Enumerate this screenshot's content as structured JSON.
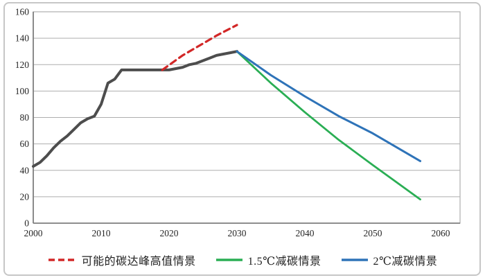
{
  "frame": {
    "border_color": "#c6c6c6",
    "background": "#ffffff"
  },
  "chart_data": {
    "type": "line",
    "title": "",
    "xlabel": "",
    "ylabel": "",
    "xlim": [
      2000,
      2062.9
    ],
    "ylim": [
      0,
      160
    ],
    "x_ticks": [
      "2000",
      "2010",
      "2020",
      "2030",
      "2040",
      "2050",
      "2060"
    ],
    "x_tick_years": [
      2000,
      2010,
      2020,
      2030,
      2040,
      2050,
      2060
    ],
    "y_ticks": [
      "0",
      "20",
      "40",
      "60",
      "80",
      "100",
      "120",
      "140",
      "160"
    ],
    "y_tick_values": [
      0,
      20,
      40,
      60,
      80,
      100,
      120,
      140,
      160
    ],
    "grid": "horizontal gridlines only, light gray",
    "legend_position": "bottom-center",
    "axis_color": "#7f7f7f",
    "grid_color": "#aeaeae",
    "tick_label_color": "#262626",
    "series": [
      {
        "name": "",
        "id": "historical-emissions",
        "color": "#4d4d4d",
        "style": "solid",
        "width": 4,
        "in_legend": false,
        "points": [
          [
            2000,
            43
          ],
          [
            2001,
            46
          ],
          [
            2002,
            51
          ],
          [
            2003,
            57
          ],
          [
            2004,
            62
          ],
          [
            2005,
            66
          ],
          [
            2006,
            71
          ],
          [
            2007,
            76
          ],
          [
            2008,
            79
          ],
          [
            2009,
            81
          ],
          [
            2010,
            90
          ],
          [
            2011,
            106
          ],
          [
            2012,
            109
          ],
          [
            2013,
            116
          ],
          [
            2014,
            116
          ],
          [
            2015,
            116
          ],
          [
            2016,
            116
          ],
          [
            2017,
            116
          ],
          [
            2018,
            116
          ],
          [
            2019,
            116
          ],
          [
            2020,
            116
          ],
          [
            2021,
            117
          ],
          [
            2022,
            118
          ],
          [
            2023,
            120
          ],
          [
            2024,
            121
          ],
          [
            2025,
            123
          ],
          [
            2026,
            125
          ],
          [
            2027,
            127
          ],
          [
            2028,
            128
          ],
          [
            2029,
            129
          ],
          [
            2030,
            130
          ]
        ]
      },
      {
        "name": "可能的碳达峰高值情景",
        "id": "peak-high-scenario",
        "color": "#d22727",
        "style": "dashed",
        "width": 3.2,
        "in_legend": true,
        "points": [
          [
            2019,
            116
          ],
          [
            2022,
            127
          ],
          [
            2025,
            136
          ],
          [
            2027,
            142
          ],
          [
            2030,
            150
          ]
        ]
      },
      {
        "name": "1.5℃减碳情景",
        "id": "scenario-1-5c",
        "color": "#2aae54",
        "style": "solid",
        "width": 2.8,
        "in_legend": true,
        "points": [
          [
            2030,
            130
          ],
          [
            2035,
            106
          ],
          [
            2040,
            84
          ],
          [
            2045,
            63
          ],
          [
            2050,
            44
          ],
          [
            2057,
            18
          ]
        ]
      },
      {
        "name": "2℃减碳情景",
        "id": "scenario-2c",
        "color": "#2e73b8",
        "style": "solid",
        "width": 3,
        "in_legend": true,
        "points": [
          [
            2030,
            130
          ],
          [
            2035,
            112
          ],
          [
            2040,
            96
          ],
          [
            2045,
            81
          ],
          [
            2050,
            68
          ],
          [
            2057,
            47
          ]
        ]
      }
    ]
  }
}
